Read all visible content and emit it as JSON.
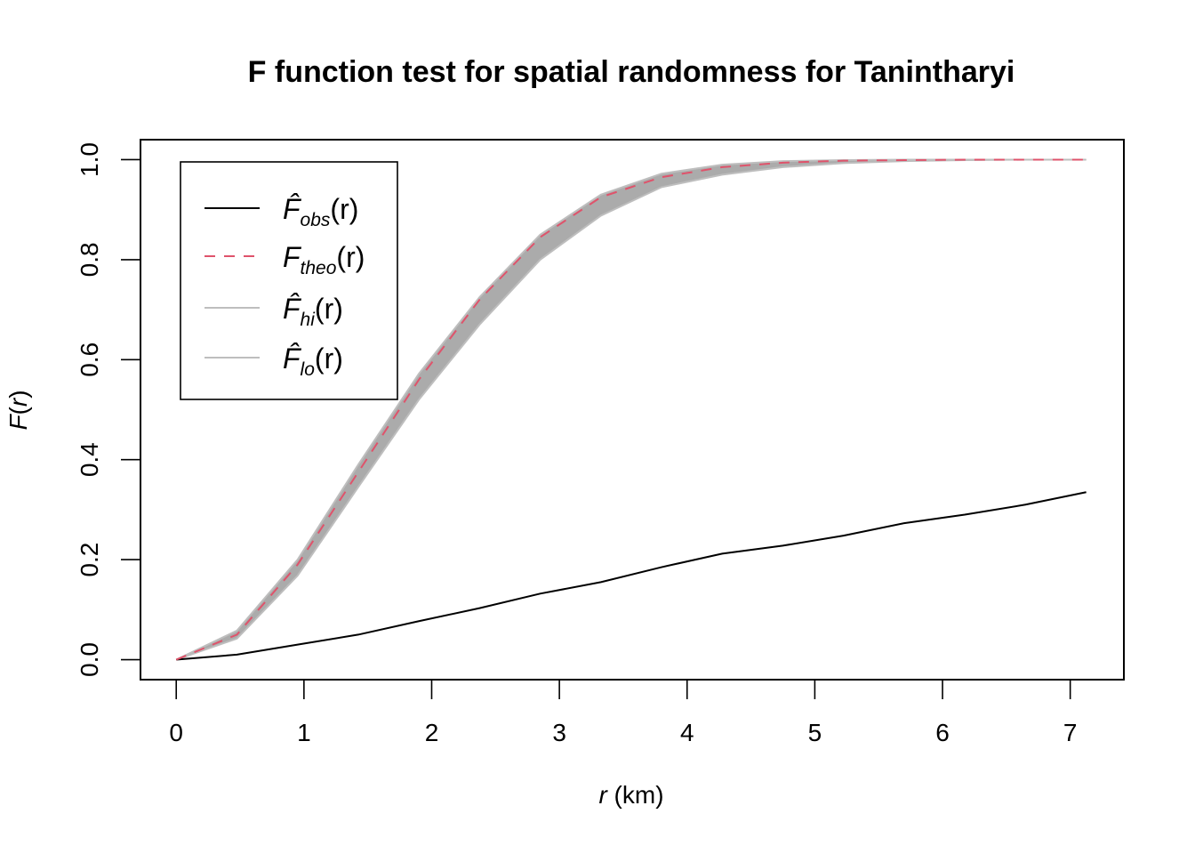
{
  "chart_data": {
    "type": "line",
    "title": "F function test for spatial randomness for Tanintharyi",
    "xlabel_var": "r",
    "xlabel_unit": " (km)",
    "ylabel_fn": "F",
    "ylabel_var": "r",
    "xlim": [
      -0.28,
      7.42
    ],
    "ylim": [
      -0.04,
      1.04
    ],
    "x_ticks": [
      "0",
      "1",
      "2",
      "3",
      "4",
      "5",
      "6",
      "7"
    ],
    "y_ticks": [
      "0.0",
      "0.2",
      "0.4",
      "0.6",
      "0.8",
      "1.0"
    ],
    "x": [
      0,
      0.475,
      0.95,
      1.425,
      1.9,
      2.375,
      2.85,
      3.325,
      3.8,
      4.275,
      4.75,
      5.225,
      5.7,
      6.175,
      6.65,
      7.125
    ],
    "series": [
      {
        "key": "obs",
        "legend_main": "F̂",
        "legend_sub": "obs",
        "legend_arg": "(r)",
        "color": "#000000",
        "dash": "",
        "values": [
          0,
          0.01,
          0.03,
          0.05,
          0.077,
          0.103,
          0.132,
          0.155,
          0.185,
          0.212,
          0.228,
          0.248,
          0.273,
          0.29,
          0.31,
          0.335
        ]
      },
      {
        "key": "theo",
        "legend_main": "F",
        "legend_sub": "theo",
        "legend_arg": "(r)",
        "color": "#DF536B",
        "dash": "12 10",
        "values": [
          0,
          0.05,
          0.19,
          0.375,
          0.56,
          0.72,
          0.845,
          0.925,
          0.965,
          0.985,
          0.994,
          0.998,
          0.999,
          1.0,
          1.0,
          1.0
        ]
      },
      {
        "key": "hi",
        "legend_main": "F̂",
        "legend_sub": "hi",
        "legend_arg": "(r)",
        "color": "#BEBEBE",
        "dash": "",
        "values": [
          0,
          0.058,
          0.2,
          0.39,
          0.572,
          0.725,
          0.85,
          0.93,
          0.972,
          0.99,
          0.997,
          0.999,
          1.0,
          1.0,
          1.0,
          1.0
        ]
      },
      {
        "key": "lo",
        "legend_main": "F̂",
        "legend_sub": "lo",
        "legend_arg": "(r)",
        "color": "#BEBEBE",
        "dash": "",
        "values": [
          0,
          0.042,
          0.168,
          0.345,
          0.52,
          0.67,
          0.8,
          0.888,
          0.945,
          0.97,
          0.985,
          0.993,
          0.997,
          0.999,
          1.0,
          1.0
        ]
      }
    ],
    "envelope_color": "#ABABAB",
    "legend_position": "top-left",
    "grid": false
  }
}
